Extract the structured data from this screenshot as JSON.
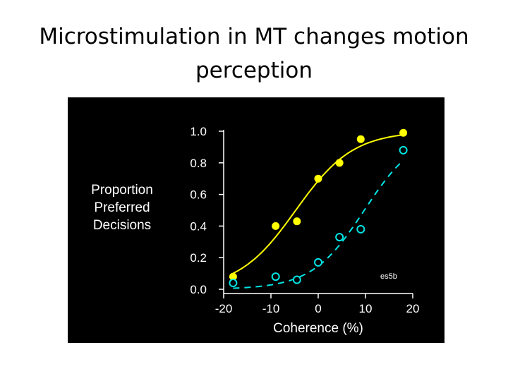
{
  "slide": {
    "title_line1": "Microstimulation in MT changes motion",
    "title_line2": "perception"
  },
  "chart_data": {
    "type": "scatter",
    "title": "",
    "xlabel": "Coherence (%)",
    "ylabel_lines": [
      "Proportion",
      "Preferred",
      "Decisions"
    ],
    "xlim": [
      -20,
      20
    ],
    "ylim": [
      0.0,
      1.0
    ],
    "x_ticks": [
      "-20",
      "-10",
      "0",
      "10",
      "20"
    ],
    "y_ticks": [
      "0.0",
      "0.2",
      "0.4",
      "0.6",
      "0.8",
      "1.0"
    ],
    "annotation": "es5b",
    "grid": false,
    "background": "#000000",
    "axis_color": "#ffffff",
    "series": [
      {
        "marker": "filled-circle",
        "color": "#ffff00",
        "line_style": "solid",
        "x": [
          -18,
          -9,
          -4.5,
          0,
          4.5,
          9,
          18
        ],
        "y": [
          0.08,
          0.4,
          0.43,
          0.7,
          0.8,
          0.95,
          0.99
        ]
      },
      {
        "marker": "open-circle",
        "color": "#00e5e5",
        "line_style": "dashed",
        "x": [
          -18,
          -9,
          -4.5,
          0,
          4.5,
          9,
          18
        ],
        "y": [
          0.04,
          0.08,
          0.06,
          0.17,
          0.33,
          0.38,
          0.88
        ]
      }
    ]
  }
}
